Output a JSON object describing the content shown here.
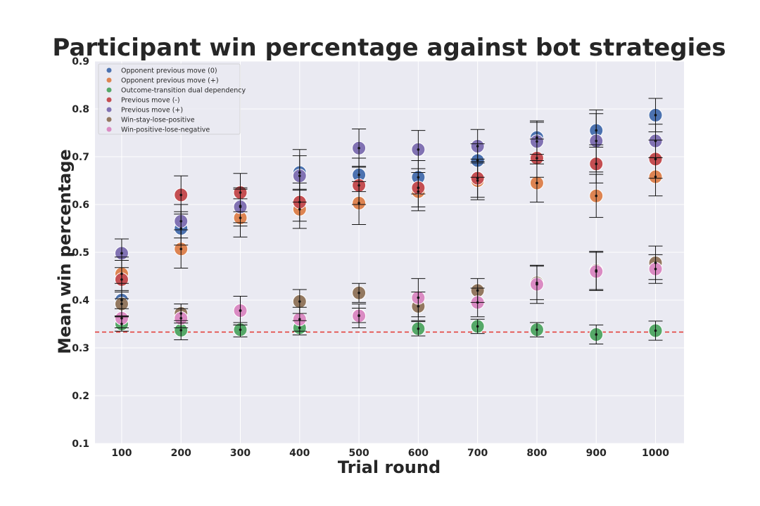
{
  "chart_data": {
    "type": "scatter",
    "title": "Participant win percentage against bot strategies",
    "xlabel": "Trial round",
    "ylabel": "Mean win percentage",
    "x": [
      100,
      200,
      300,
      400,
      500,
      600,
      700,
      800,
      900,
      1000
    ],
    "xticks": [
      "100",
      "200",
      "300",
      "400",
      "500",
      "600",
      "700",
      "800",
      "900",
      "1000"
    ],
    "yticks": [
      "0.1",
      "0.2",
      "0.3",
      "0.4",
      "0.5",
      "0.6",
      "0.7",
      "0.8",
      "0.9"
    ],
    "ylim": [
      0.1,
      0.9
    ],
    "grid": true,
    "legend_position": "top-left",
    "reference_line": {
      "y": 0.333,
      "color": "#e3342f",
      "style": "dashed"
    },
    "background_color": "#eaeaf2",
    "series": [
      {
        "name": "Opponent previous move (0)",
        "color": "#4c72b0",
        "values": [
          0.4,
          0.55,
          0.597,
          0.667,
          0.662,
          0.657,
          0.692,
          0.74,
          0.755,
          0.787
        ],
        "errors": [
          0.035,
          0.035,
          0.035,
          0.035,
          0.035,
          0.035,
          0.035,
          0.035,
          0.035,
          0.035
        ]
      },
      {
        "name": "Opponent previous move (+)",
        "color": "#dd8452",
        "values": [
          0.455,
          0.507,
          0.572,
          0.59,
          0.603,
          0.627,
          0.65,
          0.645,
          0.618,
          0.658
        ],
        "errors": [
          0.035,
          0.04,
          0.04,
          0.04,
          0.045,
          0.04,
          0.04,
          0.04,
          0.045,
          0.04
        ]
      },
      {
        "name": "Outcome-transition dual dependency",
        "color": "#55a868",
        "values": [
          0.35,
          0.337,
          0.338,
          0.342,
          0.368,
          0.34,
          0.345,
          0.338,
          0.328,
          0.336
        ],
        "errors": [
          0.015,
          0.02,
          0.015,
          0.015,
          0.015,
          0.015,
          0.015,
          0.015,
          0.02,
          0.02
        ]
      },
      {
        "name": "Previous move (-)",
        "color": "#c44e52",
        "values": [
          0.443,
          0.62,
          0.625,
          0.605,
          0.64,
          0.635,
          0.655,
          0.697,
          0.685,
          0.695
        ],
        "errors": [
          0.04,
          0.04,
          0.04,
          0.04,
          0.04,
          0.04,
          0.04,
          0.04,
          0.04,
          0.04
        ]
      },
      {
        "name": "Previous move (+)",
        "color": "#8172b3",
        "values": [
          0.498,
          0.565,
          0.595,
          0.66,
          0.718,
          0.715,
          0.722,
          0.732,
          0.733,
          0.733
        ],
        "errors": [
          0.03,
          0.035,
          0.04,
          0.055,
          0.04,
          0.04,
          0.035,
          0.04,
          0.065,
          0.035
        ]
      },
      {
        "name": "Win-stay-lose-positive",
        "color": "#937860",
        "values": [
          0.392,
          0.372,
          0.378,
          0.397,
          0.415,
          0.387,
          0.42,
          0.436,
          0.462,
          0.478
        ],
        "errors": [
          0.025,
          0.02,
          0.03,
          0.025,
          0.02,
          0.03,
          0.025,
          0.035,
          0.04,
          0.035
        ]
      },
      {
        "name": "Win-positive-lose-negative",
        "color": "#da8bc3",
        "values": [
          0.362,
          0.362,
          0.378,
          0.36,
          0.367,
          0.405,
          0.395,
          0.433,
          0.46,
          0.465
        ],
        "errors": [
          0.02,
          0.02,
          0.03,
          0.025,
          0.025,
          0.04,
          0.03,
          0.04,
          0.04,
          0.03
        ]
      }
    ]
  }
}
